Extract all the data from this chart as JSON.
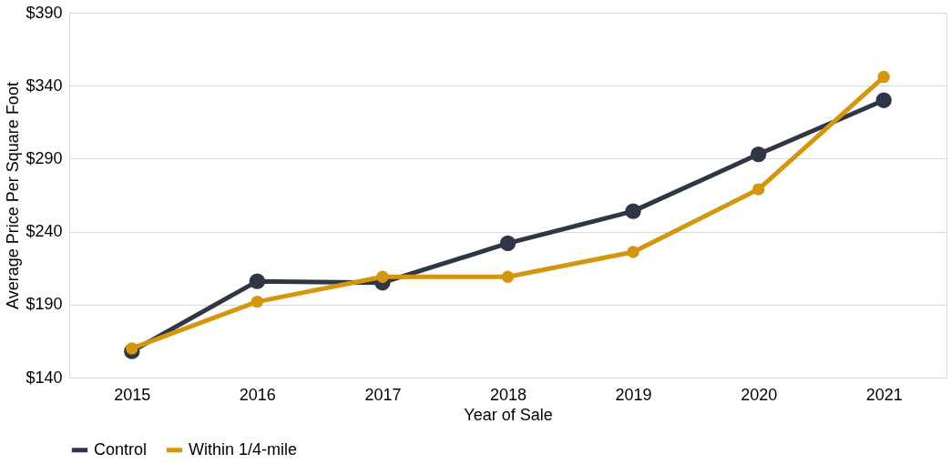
{
  "chart_data": {
    "type": "line",
    "xlabel": "Year of Sale",
    "ylabel": "Average Price Per Square Foot",
    "categories": [
      "2015",
      "2016",
      "2017",
      "2018",
      "2019",
      "2020",
      "2021"
    ],
    "series": [
      {
        "name": "Control",
        "color": "#2f3747",
        "values": [
          158,
          206,
          205,
          232,
          254,
          293,
          330
        ]
      },
      {
        "name": "Within 1/4-mile",
        "color": "#d4960f",
        "values": [
          160,
          192,
          209,
          209,
          226,
          269,
          346
        ]
      }
    ],
    "ylim": [
      140,
      390
    ],
    "yticks": [
      {
        "value": 140,
        "label": "$140"
      },
      {
        "value": 190,
        "label": "$190"
      },
      {
        "value": 240,
        "label": "$240"
      },
      {
        "value": 290,
        "label": "$290"
      },
      {
        "value": 340,
        "label": "$340"
      },
      {
        "value": 390,
        "label": "$390"
      }
    ],
    "grid": "y",
    "legend": "bottom",
    "marker": "circle",
    "line_style": "solid"
  }
}
